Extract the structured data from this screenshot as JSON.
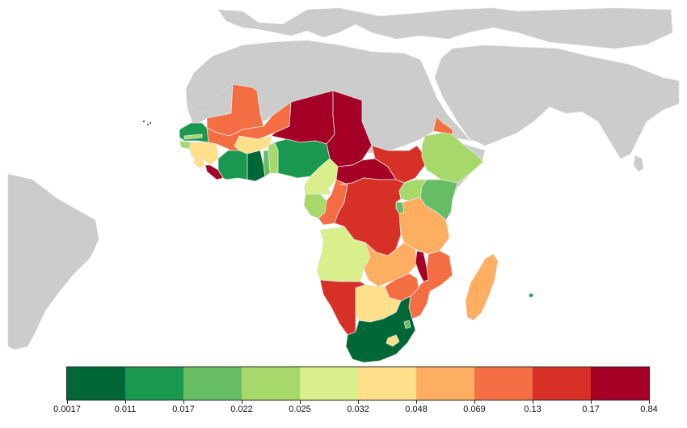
{
  "legend": {
    "colors": [
      "#006837",
      "#1a9850",
      "#66bd63",
      "#a6d96a",
      "#d9ef8b",
      "#fee08b",
      "#fdae61",
      "#f46d43",
      "#d73027",
      "#a50026"
    ],
    "ticks": [
      "0.0017",
      "0.011",
      "0.017",
      "0.022",
      "0.025",
      "0.032",
      "0.048",
      "0.069",
      "0.13",
      "0.17",
      "0.84"
    ]
  },
  "map": {
    "land_color": "#cccccc",
    "ocean_color": "#ffffff",
    "regions": [
      {
        "name": "mauritania",
        "color": "#f46d43"
      },
      {
        "name": "mali",
        "color": "#f46d43"
      },
      {
        "name": "niger",
        "color": "#a50026"
      },
      {
        "name": "chad",
        "color": "#a50026"
      },
      {
        "name": "senegal",
        "color": "#1a9850"
      },
      {
        "name": "gambia",
        "color": "#a6d96a"
      },
      {
        "name": "guinea-bissau",
        "color": "#a6d96a"
      },
      {
        "name": "guinea",
        "color": "#fee08b"
      },
      {
        "name": "sierra-leone",
        "color": "#fee08b"
      },
      {
        "name": "liberia",
        "color": "#a50026"
      },
      {
        "name": "cote-divoire",
        "color": "#1a9850"
      },
      {
        "name": "burkina-faso",
        "color": "#fee08b"
      },
      {
        "name": "ghana",
        "color": "#006837"
      },
      {
        "name": "togo",
        "color": "#66bd63"
      },
      {
        "name": "benin",
        "color": "#a6d96a"
      },
      {
        "name": "nigeria",
        "color": "#1a9850"
      },
      {
        "name": "cameroon",
        "color": "#d9ef8b"
      },
      {
        "name": "central-african-republic",
        "color": "#a50026"
      },
      {
        "name": "south-sudan",
        "color": "#d73027"
      },
      {
        "name": "eritrea",
        "color": "#f46d43"
      },
      {
        "name": "ethiopia",
        "color": "#a6d96a"
      },
      {
        "name": "somalia",
        "color": "#cccccc"
      },
      {
        "name": "kenya",
        "color": "#66bd63"
      },
      {
        "name": "uganda",
        "color": "#a6d96a"
      },
      {
        "name": "rwanda-burundi",
        "color": "#66bd63"
      },
      {
        "name": "gabon",
        "color": "#a6d96a"
      },
      {
        "name": "congo",
        "color": "#f46d43"
      },
      {
        "name": "drc",
        "color": "#d73027"
      },
      {
        "name": "tanzania",
        "color": "#fdae61"
      },
      {
        "name": "angola",
        "color": "#d9ef8b"
      },
      {
        "name": "zambia",
        "color": "#fdae61"
      },
      {
        "name": "malawi",
        "color": "#a50026"
      },
      {
        "name": "mozambique",
        "color": "#f46d43"
      },
      {
        "name": "zimbabwe",
        "color": "#f46d43"
      },
      {
        "name": "namibia",
        "color": "#d73027"
      },
      {
        "name": "botswana",
        "color": "#fee08b"
      },
      {
        "name": "south-africa",
        "color": "#006837"
      },
      {
        "name": "swaziland",
        "color": "#66bd63"
      },
      {
        "name": "lesotho",
        "color": "#fee08b"
      },
      {
        "name": "madagascar",
        "color": "#fdae61"
      },
      {
        "name": "comoros",
        "color": "#1a9850"
      }
    ]
  }
}
